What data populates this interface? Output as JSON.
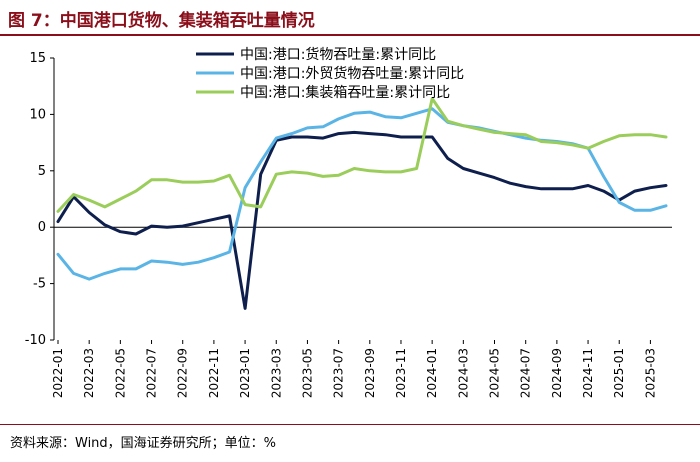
{
  "header": {
    "title": "图 7：中国港口货物、集装箱吞吐量情况"
  },
  "footer": {
    "source": "资料来源：Wind，国海证券研究所；单位：%"
  },
  "colors": {
    "dark_navy": "#0e1f4d",
    "light_blue": "#5ab4e5",
    "green": "#9acd5a",
    "brand_red": "#8a0f1b"
  },
  "chart_data": {
    "type": "line",
    "title": "中国港口货物、集装箱吞吐量情况",
    "xlabel": "",
    "ylabel": "",
    "ylim": [
      -10,
      15
    ],
    "yticks": [
      -10,
      -5,
      0,
      5,
      10,
      15
    ],
    "ytick_labels": [
      "-10",
      "-5",
      "0",
      "5",
      "10",
      "15"
    ],
    "x_start": "2022-01",
    "x_count": 40,
    "xtick_labels": [
      "2022-01",
      "2022-03",
      "2022-05",
      "2022-07",
      "2022-09",
      "2022-11",
      "2023-01",
      "2023-03",
      "2023-05",
      "2023-07",
      "2023-09",
      "2023-11",
      "2024-01",
      "2024-03",
      "2024-05",
      "2024-07",
      "2024-09",
      "2024-11",
      "2025-01",
      "2025-03"
    ],
    "grid": false,
    "legend_position": "top-center",
    "series": [
      {
        "name": "中国:港口:货物吞吐量:累计同比",
        "color": "#0e1f4d",
        "values": [
          0.5,
          2.7,
          1.3,
          0.2,
          -0.4,
          -0.6,
          0.1,
          0.0,
          0.1,
          0.4,
          0.7,
          1.0,
          -7.2,
          4.7,
          7.7,
          8.0,
          8.0,
          7.9,
          8.3,
          8.4,
          8.3,
          8.2,
          8.0,
          8.0,
          8.0,
          6.1,
          5.2,
          4.8,
          4.4,
          3.9,
          3.6,
          3.4,
          3.4,
          3.4,
          3.7,
          3.2,
          2.4,
          3.2,
          3.5,
          3.7
        ]
      },
      {
        "name": "中国:港口:外贸货物吞吐量:累计同比",
        "color": "#5ab4e5",
        "values": [
          -2.4,
          -4.1,
          -4.6,
          -4.1,
          -3.7,
          -3.7,
          -3.0,
          -3.1,
          -3.3,
          -3.1,
          -2.7,
          -2.2,
          3.5,
          5.8,
          7.9,
          8.3,
          8.8,
          8.9,
          9.6,
          10.1,
          10.2,
          9.8,
          9.7,
          10.1,
          10.5,
          9.3,
          9.0,
          8.8,
          8.5,
          8.2,
          7.9,
          7.7,
          7.6,
          7.4,
          7.0,
          4.5,
          2.2,
          1.5,
          1.5,
          1.9
        ]
      },
      {
        "name": "中国:港口:集装箱吞吐量:累计同比",
        "color": "#9acd5a",
        "values": [
          1.4,
          2.9,
          2.4,
          1.8,
          2.5,
          3.2,
          4.2,
          4.2,
          4.0,
          4.0,
          4.1,
          4.6,
          2.0,
          1.8,
          4.7,
          4.9,
          4.8,
          4.5,
          4.6,
          5.2,
          5.0,
          4.9,
          4.9,
          5.2,
          11.4,
          9.4,
          9.0,
          8.7,
          8.4,
          8.3,
          8.2,
          7.6,
          7.5,
          7.3,
          7.0,
          7.6,
          8.1,
          8.2,
          8.2,
          8.0
        ]
      }
    ]
  }
}
